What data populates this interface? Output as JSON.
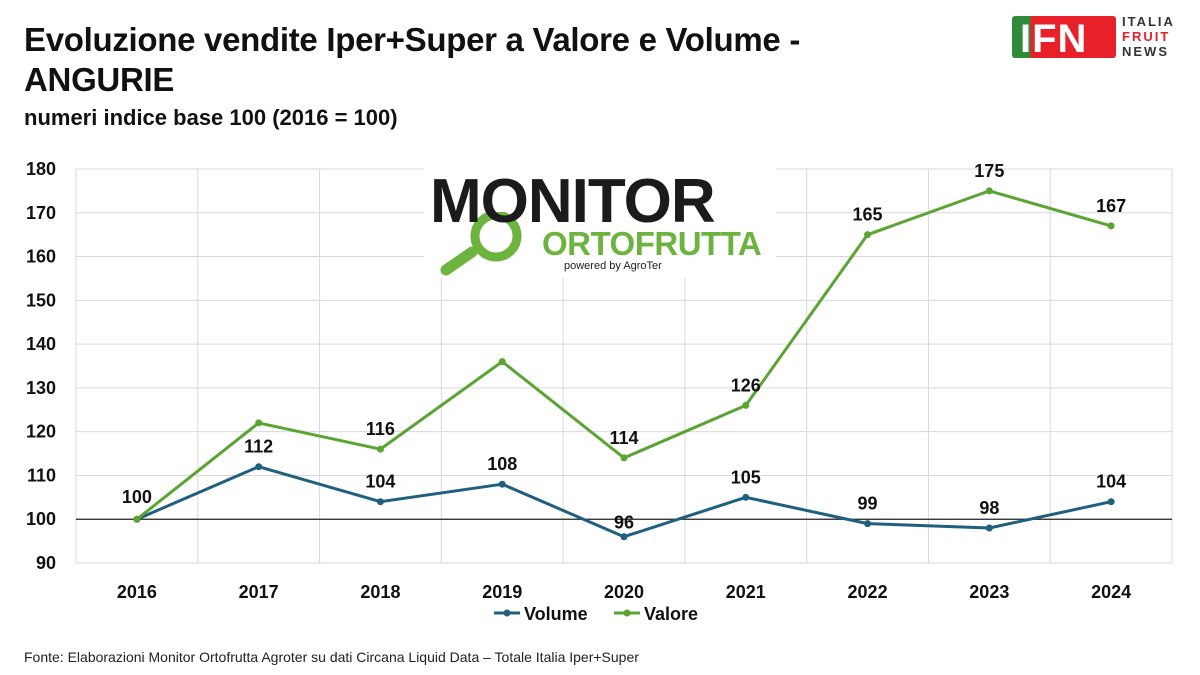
{
  "header": {
    "title": "Evoluzione vendite Iper+Super a Valore e Volume - ANGURIE",
    "subtitle": "numeri indice base 100 (2016  = 100)"
  },
  "ifn_logo": {
    "letters": "IFN",
    "line1": "ITALIA",
    "line2": "FRUIT",
    "line3": "NEWS"
  },
  "monitor_logo": {
    "word1": "MONITOR",
    "word2": "ORTOFRUTTA",
    "powered": "powered by AgroTer"
  },
  "chart_data": {
    "type": "line",
    "categories": [
      "2016",
      "2017",
      "2018",
      "2019",
      "2020",
      "2021",
      "2022",
      "2023",
      "2024"
    ],
    "series": [
      {
        "name": "Volume",
        "color": "#1f5f7f",
        "values": [
          100,
          112,
          104,
          108,
          96,
          105,
          99,
          98,
          104
        ]
      },
      {
        "name": "Valore",
        "color": "#5aa532",
        "values": [
          100,
          122,
          116,
          136,
          114,
          126,
          165,
          175,
          167
        ]
      }
    ],
    "data_labels": [
      100,
      112,
      104,
      108,
      96,
      105,
      99,
      98,
      104,
      116,
      114,
      126,
      165,
      175,
      167
    ],
    "ylim": [
      90,
      180
    ],
    "yticks": [
      90,
      100,
      110,
      120,
      130,
      140,
      150,
      160,
      170,
      180
    ],
    "baseline": 100,
    "grid": true,
    "legend": "bottom-center"
  },
  "footer": {
    "source": "Fonte: Elaborazioni Monitor Ortofrutta Agroter su dati Circana Liquid Data – Totale Italia Iper+Super"
  }
}
